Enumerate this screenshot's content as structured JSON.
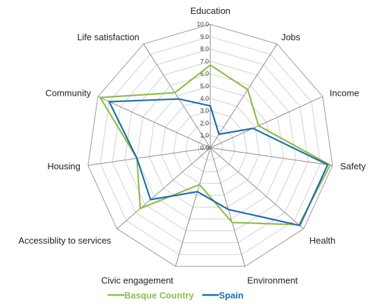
{
  "chart_data": {
    "type": "radar",
    "categories": [
      "Education",
      "Jobs",
      "Income",
      "Safety",
      "Health",
      "Environment",
      "Civic engagement",
      "Accessiblity to services",
      "Housing",
      "Community",
      "Life satisfaction"
    ],
    "ticks": [
      "0.0",
      "1.0",
      "2.0",
      "3.0",
      "4.0",
      "5.0",
      "6.0",
      "7.0",
      "8.0",
      "9.0",
      "10.0"
    ],
    "rlim": [
      0,
      10
    ],
    "series": [
      {
        "name": "Basque Country",
        "color": "#8DBE4A",
        "values": [
          6.7,
          5.6,
          4.3,
          9.8,
          9.5,
          6.3,
          3.1,
          7.5,
          6.0,
          9.8,
          5.3
        ]
      },
      {
        "name": "Spain",
        "color": "#1A6DB3",
        "values": [
          3.4,
          1.3,
          3.8,
          9.6,
          9.6,
          5.2,
          3.7,
          6.4,
          6.0,
          9.0,
          4.7
        ]
      }
    ],
    "legend_position": "bottom"
  }
}
